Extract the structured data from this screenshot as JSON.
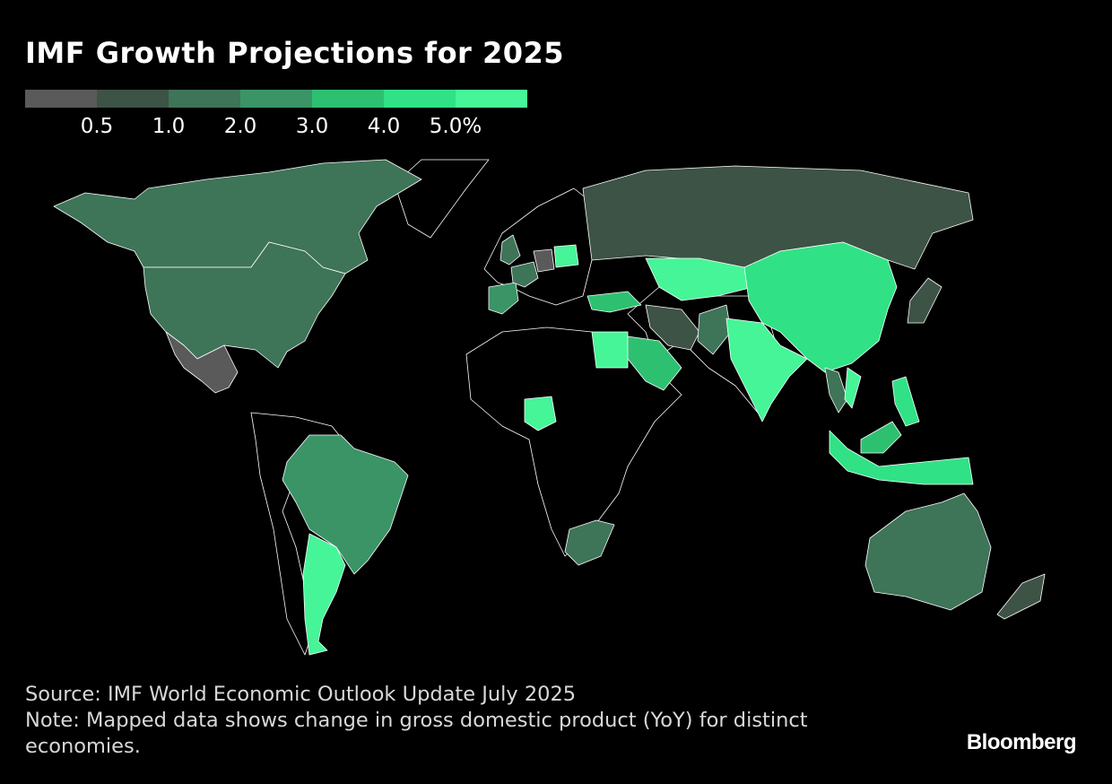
{
  "title": "IMF Growth Projections for 2025",
  "legend": {
    "colors": [
      "#5a5a5a",
      "#3d5345",
      "#3e7458",
      "#3a9466",
      "#2ec071",
      "#30e285",
      "#46f597"
    ],
    "ticks": [
      "0.5",
      "1.0",
      "2.0",
      "3.0",
      "4.0",
      "5.0%"
    ]
  },
  "map": {
    "no_data_color": "#000000",
    "countries": [
      {
        "name": "Canada",
        "bin": 2
      },
      {
        "name": "United States",
        "bin": 2
      },
      {
        "name": "Mexico",
        "bin": 0
      },
      {
        "name": "Brazil",
        "bin": 3
      },
      {
        "name": "Argentina",
        "bin": 6
      },
      {
        "name": "Russia",
        "bin": 1
      },
      {
        "name": "China",
        "bin": 5
      },
      {
        "name": "India",
        "bin": 6
      },
      {
        "name": "Kazakhstan",
        "bin": 6
      },
      {
        "name": "Iran",
        "bin": 1
      },
      {
        "name": "Pakistan",
        "bin": 2
      },
      {
        "name": "Saudi Arabia",
        "bin": 4
      },
      {
        "name": "Egypt",
        "bin": 6
      },
      {
        "name": "Nigeria",
        "bin": 6
      },
      {
        "name": "South Africa",
        "bin": 2
      },
      {
        "name": "Spain",
        "bin": 3
      },
      {
        "name": "United Kingdom",
        "bin": 2
      },
      {
        "name": "France",
        "bin": 2
      },
      {
        "name": "Germany",
        "bin": 0
      },
      {
        "name": "Poland",
        "bin": 6
      },
      {
        "name": "Turkey",
        "bin": 4
      },
      {
        "name": "Japan",
        "bin": 1
      },
      {
        "name": "Thailand",
        "bin": 2
      },
      {
        "name": "Vietnam",
        "bin": 6
      },
      {
        "name": "Philippines",
        "bin": 5
      },
      {
        "name": "Malaysia",
        "bin": 4
      },
      {
        "name": "Indonesia",
        "bin": 5
      },
      {
        "name": "Australia",
        "bin": 2
      },
      {
        "name": "New Zealand",
        "bin": 1
      },
      {
        "name": "Greenland",
        "bin": -1
      },
      {
        "name": "Africa other",
        "bin": -1
      },
      {
        "name": "South America other",
        "bin": -1
      },
      {
        "name": "Europe other",
        "bin": -1
      },
      {
        "name": "Asia other",
        "bin": -1
      }
    ]
  },
  "footer": {
    "source": "Source: IMF World Economic Outlook Update July 2025",
    "note": "Note: Mapped data shows change in gross domestic product (YoY) for distinct economies."
  },
  "brand": "Bloomberg"
}
